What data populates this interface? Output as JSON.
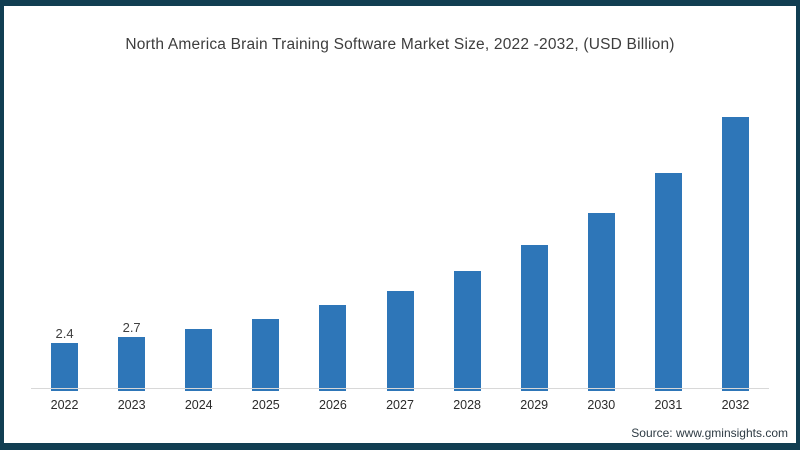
{
  "frame": {
    "border_color": "#113e52",
    "background_color": "#ffffff"
  },
  "chart_data": {
    "type": "bar",
    "title": "North America Brain Training Software Market Size, 2022 -2032, (USD Billion)",
    "xlabel": "",
    "ylabel": "",
    "categories": [
      "2022",
      "2023",
      "2024",
      "2025",
      "2026",
      "2027",
      "2028",
      "2029",
      "2030",
      "2031",
      "2032"
    ],
    "values": [
      2.4,
      2.7,
      3.1,
      3.6,
      4.3,
      5.0,
      6.0,
      7.3,
      8.9,
      10.9,
      13.7
    ],
    "bar_labels": [
      "2.4",
      "2.7",
      "",
      "",
      "",
      "",
      "",
      "",
      "",
      "",
      ""
    ],
    "bar_color": "#2e76b8",
    "axis_line_color": "#d8d8d8",
    "ylim": [
      0,
      14
    ],
    "grid": false,
    "legend_position": "none",
    "y_axis_visible": false
  },
  "footer": {
    "source_label": "Source: www.gminsights.com"
  }
}
